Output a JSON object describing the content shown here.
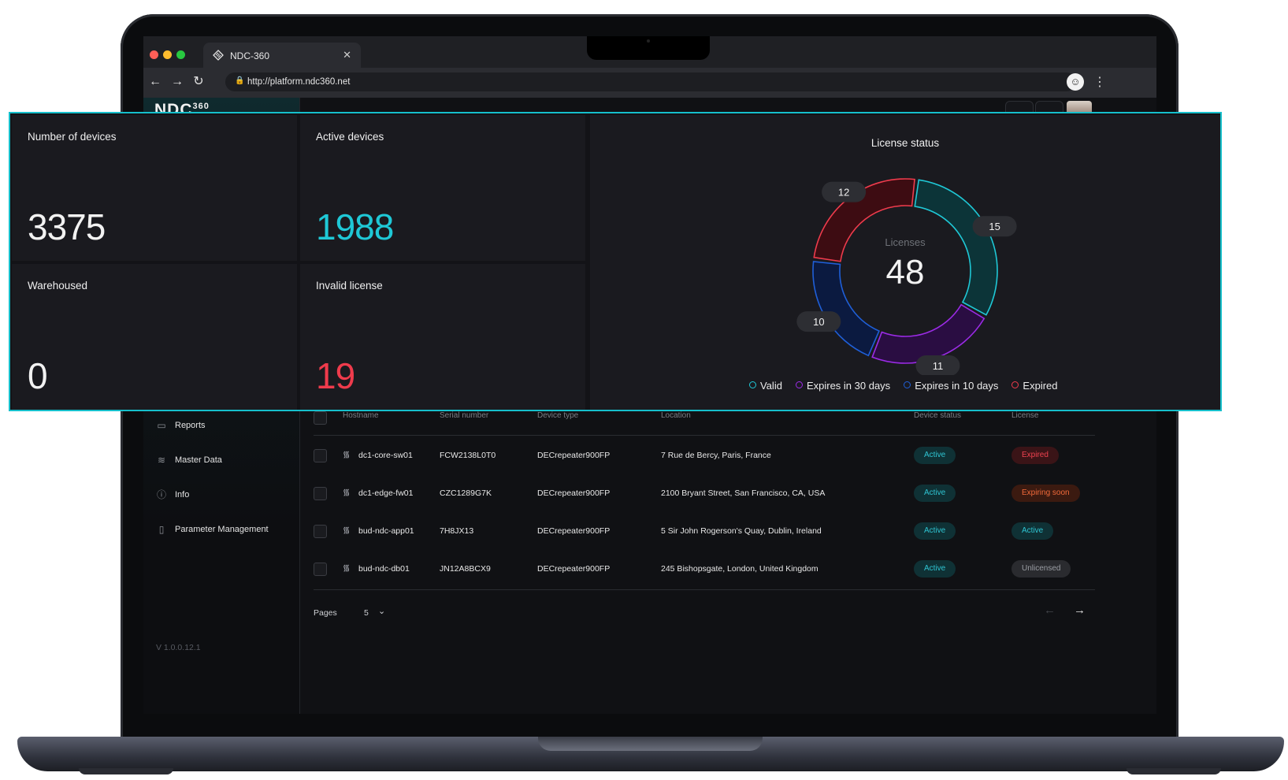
{
  "browser": {
    "tab_title": "NDC-360",
    "url": "http://platform.ndc360.net"
  },
  "app": {
    "logo_text": "NDC",
    "logo_sup": "360",
    "sidebar": {
      "items": [
        {
          "label": "Reports",
          "icon": "folder-icon"
        },
        {
          "label": "Master Data",
          "icon": "database-icon"
        },
        {
          "label": "Info",
          "icon": "info-icon"
        },
        {
          "label": "Parameter Management",
          "icon": "document-icon"
        }
      ],
      "version": "V 1.0.0.12.1"
    },
    "table": {
      "headers": [
        "Hostname",
        "Serial number",
        "Device type",
        "Location",
        "Device status",
        "License"
      ],
      "rows": [
        {
          "hostname": "dc1-core-sw01",
          "serial": "FCW2138L0T0",
          "device_type": "DECrepeater900FP",
          "location": "7 Rue de Bercy, Paris, France",
          "status": "Active",
          "license": "Expired"
        },
        {
          "hostname": "dc1-edge-fw01",
          "serial": "CZC1289G7K",
          "device_type": "DECrepeater900FP",
          "location": "2100 Bryant Street, San Francisco, CA, USA",
          "status": "Active",
          "license": "Expiring soon"
        },
        {
          "hostname": "bud-ndc-app01",
          "serial": "7H8JX13",
          "device_type": "DECrepeater900FP",
          "location": "5 Sir John Rogerson's Quay, Dublin, Ireland",
          "status": "Active",
          "license": "Active"
        },
        {
          "hostname": "bud-ndc-db01",
          "serial": "JN12A8BCX9",
          "device_type": "DECrepeater900FP",
          "location": "245 Bishopsgate, London, United Kingdom",
          "status": "Active",
          "license": "Unlicensed"
        }
      ]
    },
    "pagination": {
      "label": "Pages",
      "value": "5"
    }
  },
  "stats": {
    "number_of_devices": {
      "label": "Number of devices",
      "value": "3375"
    },
    "active_devices": {
      "label": "Active devices",
      "value": "1988"
    },
    "warehoused": {
      "label": "Warehoused",
      "value": "0"
    },
    "invalid_license": {
      "label": "Invalid license",
      "value": "19"
    }
  },
  "colors": {
    "accent_cyan": "#1fc8d6",
    "danger_red": "#ef3b4c",
    "purple": "#9b2be6",
    "blue": "#1f5fd8"
  },
  "chart_data": {
    "type": "pie",
    "title": "License status",
    "center_label": "Licenses",
    "center_value": "48",
    "series": [
      {
        "name": "Valid",
        "value": 15,
        "color": "#1fc8d6"
      },
      {
        "name": "Expires in 30 days",
        "value": 11,
        "color": "#9b2be6"
      },
      {
        "name": "Expires in 10 days",
        "value": 10,
        "color": "#1f5fd8"
      },
      {
        "name": "Expired",
        "value": 12,
        "color": "#ef3b4c"
      }
    ],
    "legend_position": "bottom"
  }
}
